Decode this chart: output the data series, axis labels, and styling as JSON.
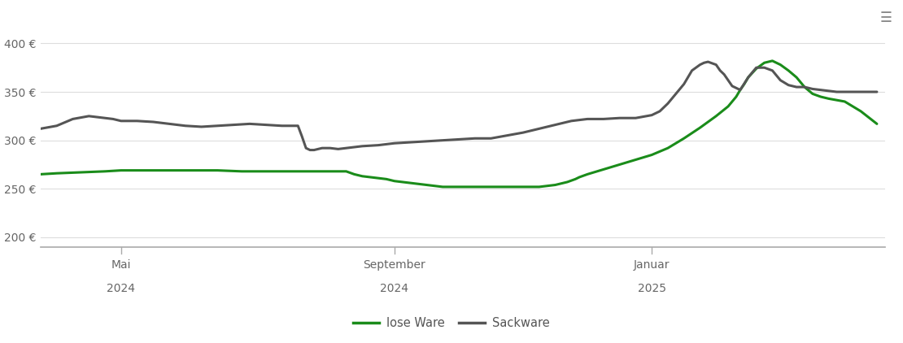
{
  "background_color": "#ffffff",
  "plot_bg_color": "#ffffff",
  "grid_color": "#dddddd",
  "y_ticks": [
    200,
    250,
    300,
    350,
    400
  ],
  "y_tick_labels": [
    "200 €",
    "250 €",
    "300 €",
    "350 €",
    "400 €"
  ],
  "ylim": [
    190,
    420
  ],
  "xlim": [
    0.0,
    1.05
  ],
  "x_tick_labels_line1": [
    "Mai",
    "September",
    "Januar"
  ],
  "x_tick_labels_line2": [
    "2024",
    "2024",
    "2025"
  ],
  "x_tick_positions": [
    0.1,
    0.44,
    0.76
  ],
  "legend_labels": [
    "lose Ware",
    "Sackware"
  ],
  "legend_colors": [
    "#1a8c1a",
    "#555555"
  ],
  "line_lose_ware_color": "#1a8c1a",
  "line_sackware_color": "#555555",
  "line_width": 2.2,
  "lose_ware_x": [
    0.0,
    0.02,
    0.05,
    0.08,
    0.1,
    0.13,
    0.16,
    0.19,
    0.22,
    0.25,
    0.28,
    0.3,
    0.32,
    0.35,
    0.38,
    0.39,
    0.4,
    0.41,
    0.42,
    0.43,
    0.44,
    0.46,
    0.48,
    0.5,
    0.52,
    0.54,
    0.56,
    0.58,
    0.6,
    0.62,
    0.64,
    0.655,
    0.665,
    0.67,
    0.68,
    0.7,
    0.72,
    0.74,
    0.76,
    0.78,
    0.8,
    0.82,
    0.84,
    0.855,
    0.86,
    0.865,
    0.87,
    0.875,
    0.88,
    0.89,
    0.9,
    0.905,
    0.91,
    0.92,
    0.93,
    0.94,
    0.95,
    0.96,
    0.97,
    0.98,
    1.0,
    1.02,
    1.04
  ],
  "lose_ware_y": [
    265,
    266,
    267,
    268,
    269,
    269,
    269,
    269,
    269,
    268,
    268,
    268,
    268,
    268,
    268,
    265,
    263,
    262,
    261,
    260,
    258,
    256,
    254,
    252,
    252,
    252,
    252,
    252,
    252,
    252,
    254,
    257,
    260,
    262,
    265,
    270,
    275,
    280,
    285,
    292,
    302,
    313,
    325,
    335,
    340,
    345,
    352,
    358,
    365,
    374,
    380,
    381,
    382,
    378,
    372,
    365,
    355,
    348,
    345,
    343,
    340,
    330,
    317
  ],
  "sackware_x": [
    0.0,
    0.02,
    0.04,
    0.06,
    0.08,
    0.09,
    0.1,
    0.11,
    0.12,
    0.14,
    0.16,
    0.18,
    0.2,
    0.22,
    0.24,
    0.26,
    0.28,
    0.3,
    0.31,
    0.32,
    0.325,
    0.33,
    0.335,
    0.34,
    0.35,
    0.36,
    0.37,
    0.38,
    0.4,
    0.42,
    0.44,
    0.46,
    0.48,
    0.5,
    0.52,
    0.54,
    0.56,
    0.58,
    0.6,
    0.62,
    0.64,
    0.66,
    0.68,
    0.7,
    0.72,
    0.74,
    0.76,
    0.77,
    0.78,
    0.79,
    0.8,
    0.805,
    0.81,
    0.815,
    0.82,
    0.825,
    0.83,
    0.84,
    0.845,
    0.85,
    0.855,
    0.86,
    0.87,
    0.88,
    0.89,
    0.9,
    0.91,
    0.92,
    0.93,
    0.94,
    0.95,
    0.96,
    0.97,
    0.98,
    0.99,
    1.0,
    1.02,
    1.04
  ],
  "sackware_y": [
    312,
    315,
    322,
    325,
    323,
    322,
    320,
    320,
    320,
    319,
    317,
    315,
    314,
    315,
    316,
    317,
    316,
    315,
    315,
    315,
    304,
    292,
    290,
    290,
    292,
    292,
    291,
    292,
    294,
    295,
    297,
    298,
    299,
    300,
    301,
    302,
    302,
    305,
    308,
    312,
    316,
    320,
    322,
    322,
    323,
    323,
    326,
    330,
    338,
    348,
    358,
    365,
    372,
    375,
    378,
    380,
    381,
    378,
    372,
    368,
    362,
    356,
    352,
    365,
    375,
    375,
    372,
    362,
    357,
    355,
    355,
    353,
    352,
    351,
    350,
    350,
    350,
    350
  ]
}
